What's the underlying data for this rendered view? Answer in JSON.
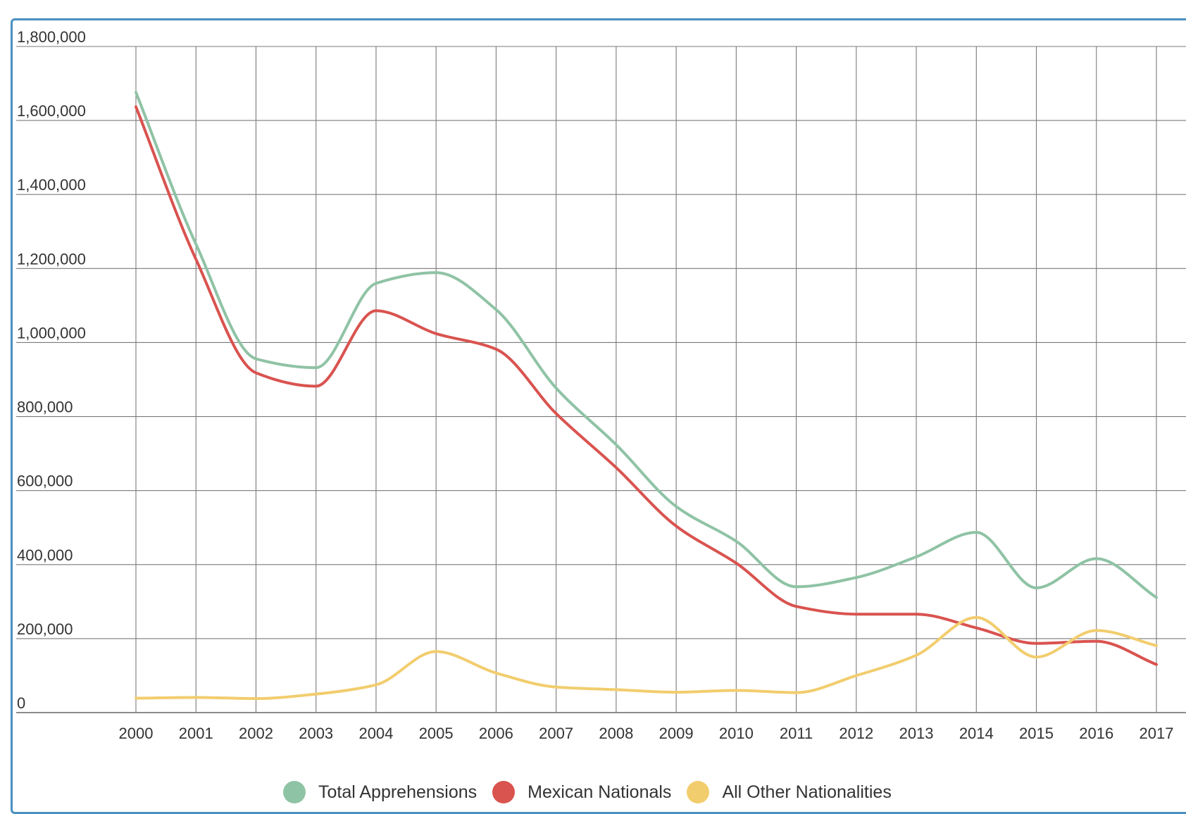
{
  "chart_data": {
    "type": "line",
    "title": "",
    "xlabel": "",
    "ylabel": "",
    "x": [
      "2000",
      "2001",
      "2002",
      "2003",
      "2004",
      "2005",
      "2006",
      "2007",
      "2008",
      "2009",
      "2010",
      "2011",
      "2012",
      "2013",
      "2014",
      "2015",
      "2016",
      "2017"
    ],
    "y_ticks": [
      "0",
      "200,000",
      "400,000",
      "600,000",
      "800,000",
      "1,000,000",
      "1,200,000",
      "1,400,000",
      "1,600,000",
      "1,800,000"
    ],
    "ylim": [
      0,
      1800000
    ],
    "grid": true,
    "smooth": true,
    "legend_position": "bottom",
    "series": [
      {
        "name": "Total Apprehensions",
        "color": "#8fc3a5",
        "values": [
          1676000,
          1266000,
          956000,
          932000,
          1160000,
          1189000,
          1089000,
          877000,
          724000,
          557000,
          463000,
          340000,
          365000,
          421000,
          487000,
          337000,
          416000,
          311000
        ]
      },
      {
        "name": "Mexican Nationals",
        "color": "#d9534f",
        "values": [
          1637000,
          1225000,
          918000,
          882000,
          1086000,
          1024000,
          982000,
          808000,
          662000,
          504000,
          404000,
          287000,
          266000,
          266000,
          229000,
          187000,
          193000,
          130000
        ]
      },
      {
        "name": "All Other Nationalities",
        "color": "#f2cd6e",
        "values": [
          39000,
          41000,
          38000,
          50000,
          75000,
          165000,
          107000,
          69000,
          62000,
          55000,
          60000,
          54000,
          100000,
          155000,
          257000,
          150000,
          222000,
          181000
        ]
      }
    ]
  }
}
